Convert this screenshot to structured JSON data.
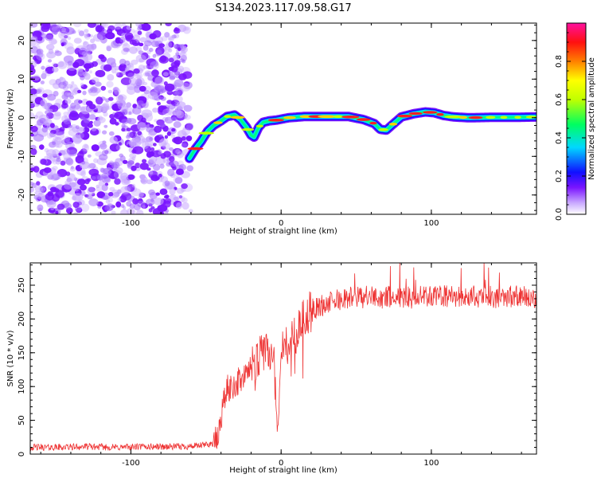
{
  "title": "S134.2023.117.09.58.G17",
  "chart_data": [
    {
      "type": "heatmap",
      "xlabel": "Height of straight line (km)",
      "ylabel": "Frequency (Hz)",
      "xlim": [
        -167,
        170
      ],
      "ylim": [
        -25,
        24.5
      ],
      "xticks": [
        -100,
        0,
        100
      ],
      "yticks": [
        -20,
        -10,
        0,
        10,
        20
      ],
      "colorbar": {
        "label": "Normalized spectral amplitude",
        "range": [
          0,
          1
        ],
        "ticks": [
          0.0,
          0.2,
          0.4,
          0.6,
          0.8
        ]
      },
      "noise_region": {
        "x_range": [
          -167,
          -60
        ],
        "y_range": [
          -25,
          24.5
        ]
      },
      "ridge": {
        "x": [
          -61,
          -57,
          -53,
          -49,
          -45,
          -40,
          -36,
          -31,
          -27,
          -23,
          -20,
          -18,
          -15,
          -12,
          -8,
          -3,
          5,
          15,
          30,
          45,
          55,
          62,
          66,
          70,
          75,
          80,
          88,
          96,
          102,
          108,
          115,
          125,
          140,
          155,
          170
        ],
        "frequency": [
          -10.5,
          -8,
          -6,
          -3.5,
          -2,
          -0.8,
          0.3,
          0.7,
          -0.5,
          -2.5,
          -4.5,
          -5,
          -2.5,
          -1.2,
          -0.8,
          -0.6,
          0,
          0.3,
          0.3,
          0.3,
          -0.5,
          -1.5,
          -3,
          -3.2,
          -1.5,
          0.2,
          1,
          1.5,
          1.3,
          0.6,
          0.2,
          0,
          0.1,
          0.1,
          0.2
        ]
      }
    },
    {
      "type": "line",
      "xlabel": "Height of straight line (km)",
      "ylabel": "SNR (10 * v/v)",
      "xlim": [
        -167,
        170
      ],
      "ylim": [
        0,
        283
      ],
      "xticks": [
        -100,
        0,
        100
      ],
      "yticks": [
        0,
        50,
        100,
        150,
        200,
        250
      ],
      "color": "#ee3333",
      "x": [
        -167,
        -150,
        -130,
        -110,
        -90,
        -70,
        -55,
        -45,
        -42,
        -40,
        -38,
        -36,
        -34,
        -30,
        -25,
        -20,
        -15,
        -10,
        -5,
        -2,
        0,
        5,
        10,
        15,
        20,
        25,
        30,
        40,
        50,
        60,
        80,
        100,
        120,
        140,
        160,
        170
      ],
      "snr": [
        10,
        10,
        11,
        10,
        11,
        11,
        12,
        16,
        22,
        55,
        80,
        95,
        98,
        105,
        112,
        125,
        140,
        155,
        145,
        30,
        150,
        165,
        180,
        200,
        212,
        218,
        222,
        230,
        233,
        232,
        232,
        233,
        233,
        233,
        233,
        232
      ]
    }
  ]
}
